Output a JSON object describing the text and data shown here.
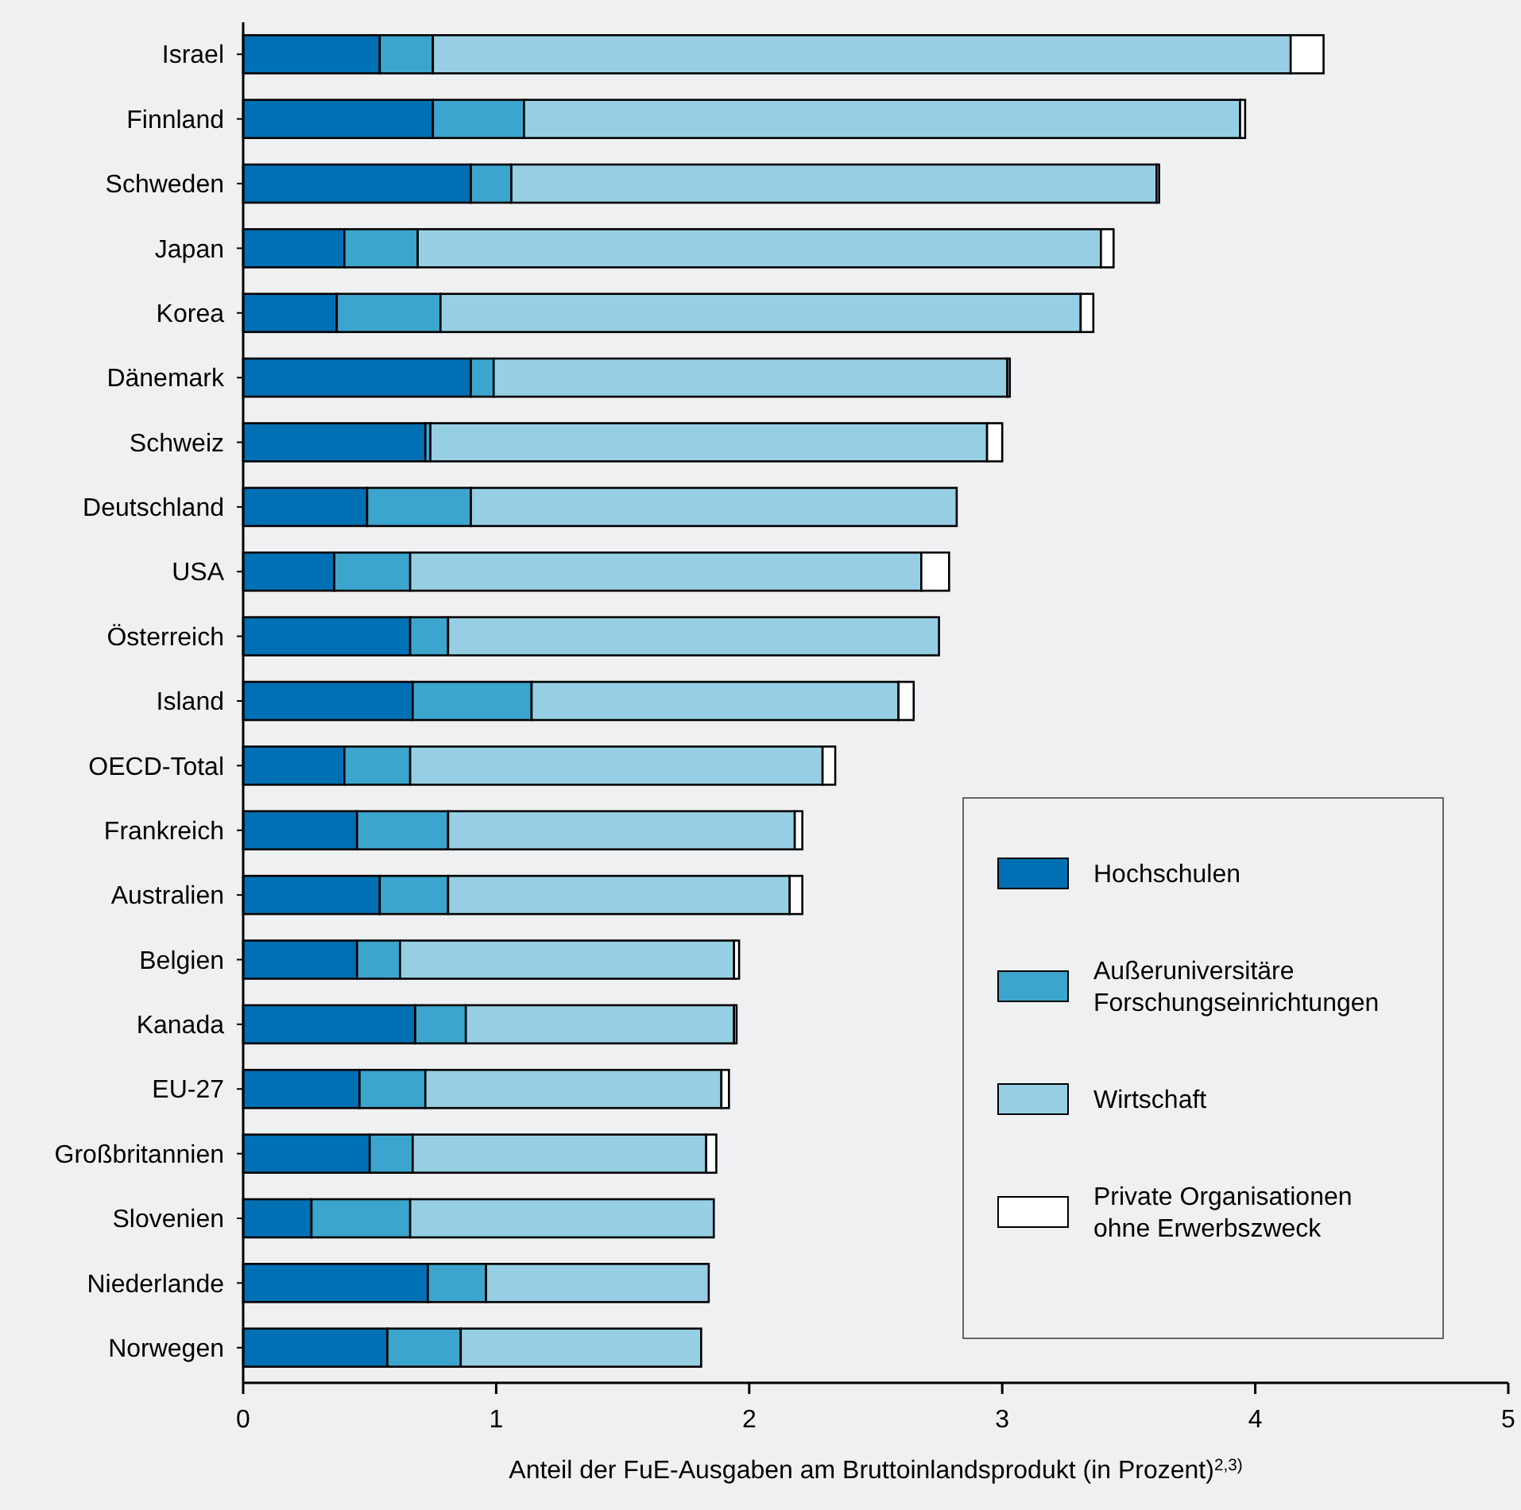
{
  "chart_data": {
    "type": "bar",
    "orientation": "horizontal",
    "stacked": true,
    "xlabel": "Anteil der FuE-Ausgaben am Bruttoinlandsprodukt (in Prozent)$^{2,3)}$",
    "categories": [
      "Israel",
      "Finnland",
      "Schweden",
      "Japan",
      "Korea",
      "Dänemark",
      "Schweiz",
      "Deutschland",
      "USA",
      "Österreich",
      "Island",
      "OECD-Total",
      "Frankreich",
      "Australien",
      "Belgien",
      "Kanada",
      "EU-27",
      "Großbritannien",
      "Slovenien",
      "Niederlande",
      "Norwegen"
    ],
    "series": [
      {
        "name": "Hochschulen",
        "color": "#0070b4",
        "values": [
          0.54,
          0.75,
          0.9,
          0.4,
          0.37,
          0.9,
          0.72,
          0.49,
          0.36,
          0.66,
          0.67,
          0.4,
          0.45,
          0.54,
          0.45,
          0.68,
          0.46,
          0.5,
          0.27,
          0.73,
          0.57
        ]
      },
      {
        "name": "Außeruniversitäre Forschungseinrichtungen",
        "color": "#3ca5cd",
        "values": [
          0.21,
          0.36,
          0.16,
          0.29,
          0.41,
          0.09,
          0.02,
          0.41,
          0.3,
          0.15,
          0.47,
          0.26,
          0.36,
          0.27,
          0.17,
          0.2,
          0.26,
          0.17,
          0.39,
          0.23,
          0.29
        ]
      },
      {
        "name": "Wirtschaft",
        "color": "#96cfe3",
        "values": [
          3.39,
          2.83,
          2.55,
          2.7,
          2.53,
          2.03,
          2.2,
          1.92,
          2.02,
          1.94,
          1.45,
          1.63,
          1.37,
          1.35,
          1.32,
          1.06,
          1.17,
          1.16,
          1.2,
          0.88,
          0.95
        ]
      },
      {
        "name": "Private Organisationen ohne Erwerbszweck",
        "color": "#ffffff",
        "values": [
          0.13,
          0.02,
          0.01,
          0.05,
          0.05,
          0.01,
          0.06,
          0,
          0.11,
          0,
          0.06,
          0.05,
          0.03,
          0.05,
          0.02,
          0.01,
          0.03,
          0.04,
          0,
          0,
          0
        ]
      }
    ],
    "xlim": [
      0,
      5
    ],
    "xticks": [
      0,
      1,
      2,
      3,
      4,
      5
    ],
    "grid": false,
    "legend": "bottom right"
  }
}
